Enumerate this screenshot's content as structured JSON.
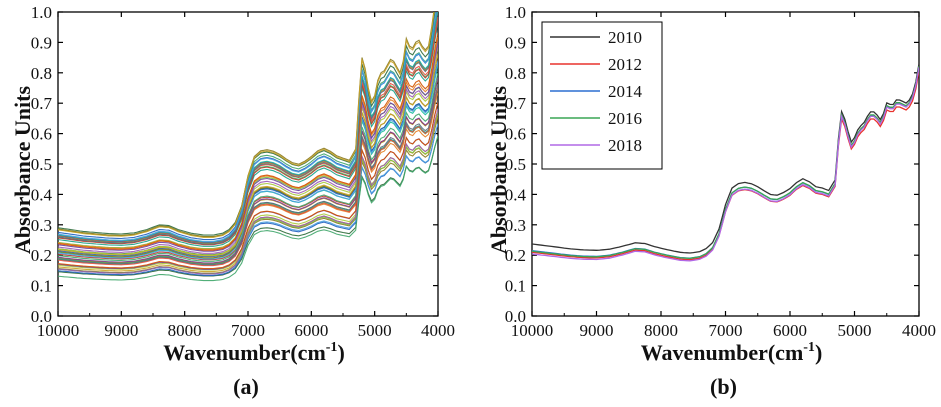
{
  "chart_data": [
    {
      "type": "line",
      "panel_label": "(a)",
      "xlabel": "Wavenumber(cm",
      "xlabel_sup": "-1",
      "xlabel_end": ")",
      "ylabel": "Absorbance Units",
      "xlim": [
        10000,
        4000
      ],
      "ylim": [
        0.0,
        1.0
      ],
      "xticks": [
        "10000",
        "9000",
        "8000",
        "7000",
        "6000",
        "5000",
        "4000"
      ],
      "yticks": [
        "0.0",
        "0.1",
        "0.2",
        "0.3",
        "0.4",
        "0.5",
        "0.6",
        "0.7",
        "0.8",
        "0.9",
        "1.0"
      ],
      "legend": [],
      "base_x": [
        10000,
        9800,
        9600,
        9400,
        9200,
        9000,
        8800,
        8600,
        8400,
        8250,
        8100,
        7900,
        7700,
        7550,
        7400,
        7300,
        7200,
        7100,
        7000,
        6900,
        6800,
        6700,
        6600,
        6500,
        6400,
        6300,
        6200,
        6100,
        6000,
        5900,
        5800,
        5700,
        5600,
        5500,
        5400,
        5300,
        5250,
        5200,
        5150,
        5100,
        5050,
        5000,
        4950,
        4900,
        4850,
        4800,
        4750,
        4700,
        4650,
        4600,
        4550,
        4500,
        4450,
        4400,
        4350,
        4300,
        4250,
        4200,
        4150,
        4100,
        4050,
        4000
      ],
      "base_y": [
        0.22,
        0.215,
        0.21,
        0.207,
        0.204,
        0.203,
        0.206,
        0.215,
        0.228,
        0.226,
        0.215,
        0.205,
        0.2,
        0.2,
        0.205,
        0.215,
        0.235,
        0.28,
        0.36,
        0.41,
        0.425,
        0.428,
        0.424,
        0.416,
        0.404,
        0.394,
        0.39,
        0.398,
        0.41,
        0.425,
        0.432,
        0.424,
        0.412,
        0.406,
        0.4,
        0.43,
        0.56,
        0.67,
        0.64,
        0.59,
        0.555,
        0.57,
        0.61,
        0.63,
        0.635,
        0.65,
        0.665,
        0.66,
        0.645,
        0.63,
        0.66,
        0.72,
        0.7,
        0.695,
        0.71,
        0.715,
        0.7,
        0.69,
        0.7,
        0.75,
        0.81,
        0.86
      ],
      "series_count": 46,
      "palette": [
        "#2e6b3a",
        "#3fa66a",
        "#1f5fbf",
        "#4aa0e0",
        "#8a7a1f",
        "#c9a227",
        "#7bc043",
        "#a9c93a",
        "#9b59b6",
        "#6b3fa0",
        "#e67e22",
        "#d35400",
        "#16a085",
        "#2ecc71",
        "#c0392b",
        "#e74c3c",
        "#b7950b",
        "#5d6d7e",
        "#7d3c98",
        "#1abc9c"
      ]
    },
    {
      "type": "line",
      "panel_label": "(b)",
      "xlabel": "Wavenumber(cm",
      "xlabel_sup": "-1",
      "xlabel_end": ")",
      "ylabel": "Absorbance Units",
      "xlim": [
        10000,
        4000
      ],
      "ylim": [
        0.0,
        1.0
      ],
      "xticks": [
        "10000",
        "9000",
        "8000",
        "7000",
        "6000",
        "5000",
        "4000"
      ],
      "yticks": [
        "0.0",
        "0.1",
        "0.2",
        "0.3",
        "0.4",
        "0.5",
        "0.6",
        "0.7",
        "0.8",
        "0.9",
        "1.0"
      ],
      "legend_position": "top-left",
      "series": [
        {
          "name": "2010",
          "color": "#333333",
          "offset": 0.01,
          "tilt": 0.012,
          "scale": 1.0
        },
        {
          "name": "2012",
          "color": "#e8322d",
          "offset": -0.002,
          "tilt": 0.0,
          "scale": 0.985
        },
        {
          "name": "2014",
          "color": "#2c6fd1",
          "offset": 0.0,
          "tilt": 0.0,
          "scale": 1.0
        },
        {
          "name": "2016",
          "color": "#3aa655",
          "offset": 0.002,
          "tilt": -0.004,
          "scale": 1.0
        },
        {
          "name": "2018",
          "color": "#b168e6",
          "offset": -0.006,
          "tilt": -0.006,
          "scale": 1.005
        }
      ],
      "base_x": [
        10000,
        9800,
        9600,
        9400,
        9200,
        9000,
        8800,
        8600,
        8400,
        8250,
        8100,
        7900,
        7700,
        7550,
        7400,
        7300,
        7200,
        7100,
        7000,
        6900,
        6800,
        6700,
        6600,
        6500,
        6400,
        6300,
        6200,
        6100,
        6000,
        5900,
        5800,
        5700,
        5600,
        5500,
        5400,
        5300,
        5250,
        5200,
        5150,
        5100,
        5050,
        5000,
        4950,
        4900,
        4850,
        4800,
        4750,
        4700,
        4650,
        4600,
        4550,
        4500,
        4450,
        4400,
        4350,
        4300,
        4250,
        4200,
        4150,
        4100,
        4050,
        4000
      ],
      "base_y": [
        0.215,
        0.21,
        0.205,
        0.2,
        0.197,
        0.196,
        0.2,
        0.21,
        0.222,
        0.22,
        0.21,
        0.2,
        0.192,
        0.19,
        0.195,
        0.205,
        0.225,
        0.27,
        0.35,
        0.405,
        0.42,
        0.424,
        0.42,
        0.41,
        0.397,
        0.385,
        0.383,
        0.392,
        0.405,
        0.425,
        0.438,
        0.428,
        0.412,
        0.408,
        0.4,
        0.435,
        0.57,
        0.66,
        0.635,
        0.595,
        0.56,
        0.575,
        0.6,
        0.615,
        0.625,
        0.645,
        0.66,
        0.66,
        0.65,
        0.635,
        0.655,
        0.69,
        0.685,
        0.685,
        0.7,
        0.7,
        0.695,
        0.69,
        0.7,
        0.72,
        0.76,
        0.82
      ]
    }
  ]
}
